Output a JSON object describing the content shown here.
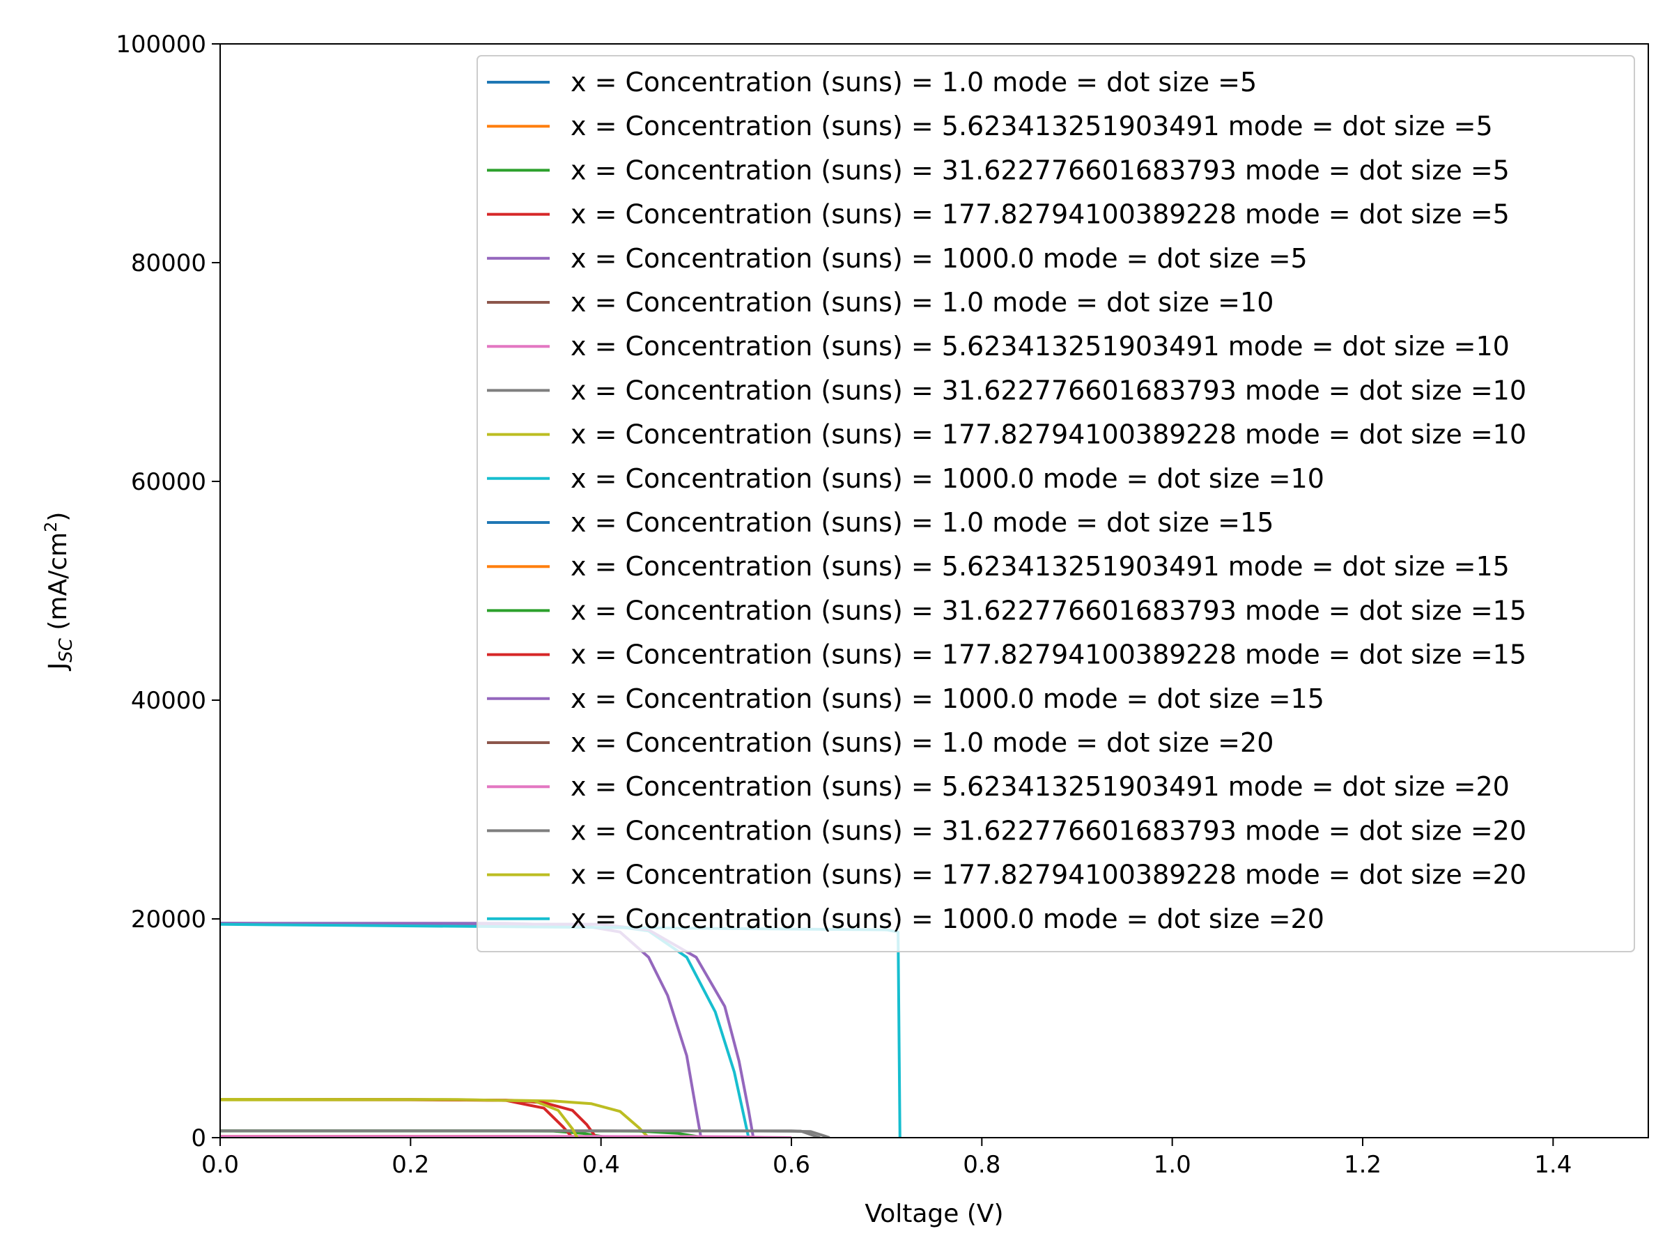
{
  "chart_data": {
    "type": "line",
    "xlabel": "Voltage (V)",
    "ylabel": {
      "main": "J",
      "sub": "SC",
      "units_prefix": " (mA/cm",
      "units_sup": "2",
      "units_suffix": ")"
    },
    "xlim": [
      0,
      1.5
    ],
    "ylim": [
      0,
      100000
    ],
    "xticks": [
      0.0,
      0.2,
      0.4,
      0.6,
      0.8,
      1.0,
      1.2,
      1.4
    ],
    "xtick_labels": [
      "0.0",
      "0.2",
      "0.4",
      "0.6",
      "0.8",
      "1.0",
      "1.2",
      "1.4"
    ],
    "yticks": [
      0,
      20000,
      40000,
      60000,
      80000,
      100000
    ],
    "ytick_labels": [
      "0",
      "20000",
      "40000",
      "60000",
      "80000",
      "100000"
    ],
    "legend_position": "upper-right",
    "series": [
      {
        "name": "x = Concentration (suns) = 1.0 mode = dot size =5",
        "color": "#1f77b4",
        "x": [
          0,
          0.2,
          0.3,
          0.33,
          0.35,
          0.36
        ],
        "y": [
          20,
          20,
          19,
          12,
          4,
          0
        ]
      },
      {
        "name": "x = Concentration (suns) = 5.623413251903491 mode = dot size =5",
        "color": "#ff7f0e",
        "x": [
          0,
          0.25,
          0.33,
          0.36,
          0.38,
          0.39
        ],
        "y": [
          110,
          110,
          105,
          70,
          20,
          0
        ]
      },
      {
        "name": "x = Concentration (suns) = 31.622776601683793 mode = dot size =5",
        "color": "#2ca02c",
        "x": [
          0,
          0.28,
          0.35,
          0.38,
          0.4,
          0.41
        ],
        "y": [
          620,
          620,
          600,
          400,
          120,
          0
        ]
      },
      {
        "name": "x = Concentration (suns) = 177.82794100389228 mode = dot size =5",
        "color": "#d62728",
        "x": [
          0,
          0.2,
          0.3,
          0.34,
          0.36,
          0.37
        ],
        "y": [
          3500,
          3490,
          3400,
          2700,
          1000,
          0
        ]
      },
      {
        "name": "x = Concentration (suns) = 1000.0 mode = dot size =5",
        "color": "#9467bd",
        "x": [
          0,
          0.3,
          0.38,
          0.42,
          0.45,
          0.47,
          0.49,
          0.5,
          0.505
        ],
        "y": [
          19600,
          19600,
          19400,
          18800,
          16500,
          13000,
          7500,
          2500,
          0
        ]
      },
      {
        "name": "x = Concentration (suns) = 1.0 mode = dot size =10",
        "color": "#8c564b",
        "x": [
          0,
          0.3,
          0.38,
          0.41,
          0.43,
          0.44
        ],
        "y": [
          20,
          20,
          19,
          12,
          4,
          0
        ]
      },
      {
        "name": "x = Concentration (suns) = 5.623413251903491 mode = dot size =10",
        "color": "#e377c2",
        "x": [
          0,
          0.3,
          0.4,
          0.44,
          0.46,
          0.47
        ],
        "y": [
          110,
          110,
          105,
          70,
          20,
          0
        ]
      },
      {
        "name": "x = Concentration (suns) = 31.622776601683793 mode = dot size =10",
        "color": "#7f7f7f",
        "x": [
          0,
          0.4,
          0.55,
          0.6,
          0.62,
          0.635,
          0.64
        ],
        "y": [
          620,
          620,
          610,
          590,
          560,
          150,
          0
        ]
      },
      {
        "name": "x = Concentration (suns) = 177.82794100389228 mode = dot size =10",
        "color": "#bcbd22",
        "x": [
          0,
          0.2,
          0.3,
          0.35,
          0.39,
          0.42,
          0.44,
          0.45
        ],
        "y": [
          3450,
          3450,
          3420,
          3350,
          3100,
          2400,
          900,
          0
        ]
      },
      {
        "name": "x = Concentration (suns) = 1000.0 mode = dot size =10",
        "color": "#17becf",
        "x": [
          0,
          0.4,
          0.45,
          0.49,
          0.52,
          0.54,
          0.55,
          0.555
        ],
        "y": [
          19600,
          19500,
          18900,
          16500,
          11500,
          6000,
          2000,
          0
        ]
      },
      {
        "name": "x = Concentration (suns) = 1.0 mode = dot size =15",
        "color": "#1f77b4",
        "x": [
          0,
          0.4,
          0.5,
          0.54,
          0.56,
          0.57
        ],
        "y": [
          20,
          20,
          19,
          12,
          4,
          0
        ]
      },
      {
        "name": "x = Concentration (suns) = 5.623413251903491 mode = dot size =15",
        "color": "#ff7f0e",
        "x": [
          0,
          0.3,
          0.38,
          0.42,
          0.45,
          0.47
        ],
        "y": [
          110,
          110,
          105,
          80,
          25,
          0
        ]
      },
      {
        "name": "x = Concentration (suns) = 31.622776601683793 mode = dot size =15",
        "color": "#2ca02c",
        "x": [
          0,
          0.35,
          0.44,
          0.48,
          0.5,
          0.51
        ],
        "y": [
          620,
          620,
          600,
          400,
          120,
          0
        ]
      },
      {
        "name": "x = Concentration (suns) = 177.82794100389228 mode = dot size =15",
        "color": "#d62728",
        "x": [
          0,
          0.2,
          0.3,
          0.34,
          0.37,
          0.385,
          0.395
        ],
        "y": [
          3500,
          3490,
          3420,
          3200,
          2500,
          1200,
          0
        ]
      },
      {
        "name": "x = Concentration (suns) = 1000.0 mode = dot size =15",
        "color": "#9467bd",
        "x": [
          0,
          0.4,
          0.45,
          0.5,
          0.53,
          0.545,
          0.555,
          0.56
        ],
        "y": [
          19600,
          19500,
          19000,
          16500,
          12000,
          7000,
          2500,
          0
        ]
      },
      {
        "name": "x = Concentration (suns) = 1.0 mode = dot size =20",
        "color": "#8c564b",
        "x": [
          0,
          0.4,
          0.5,
          0.55,
          0.58,
          0.6
        ],
        "y": [
          20,
          20,
          19,
          12,
          4,
          0
        ]
      },
      {
        "name": "x = Concentration (suns) = 5.623413251903491 mode = dot size =20",
        "color": "#e377c2",
        "x": [
          0,
          0.4,
          0.5,
          0.55,
          0.58,
          0.6
        ],
        "y": [
          110,
          110,
          105,
          70,
          20,
          0
        ]
      },
      {
        "name": "x = Concentration (suns) = 31.622776601683793 mode = dot size =20",
        "color": "#7f7f7f",
        "x": [
          0,
          0.55,
          0.6,
          0.61,
          0.62,
          0.63
        ],
        "y": [
          620,
          620,
          615,
          600,
          300,
          0
        ]
      },
      {
        "name": "x = Concentration (suns) = 177.82794100389228 mode = dot size =20",
        "color": "#bcbd22",
        "x": [
          0,
          0.25,
          0.33,
          0.355,
          0.37,
          0.375
        ],
        "y": [
          3500,
          3490,
          3350,
          2500,
          800,
          0
        ]
      },
      {
        "name": "x = Concentration (suns) = 1000.0 mode = dot size =20",
        "color": "#17becf",
        "x": [
          0,
          0.7,
          0.712,
          0.714
        ],
        "y": [
          19500,
          19000,
          18800,
          0
        ]
      }
    ]
  }
}
